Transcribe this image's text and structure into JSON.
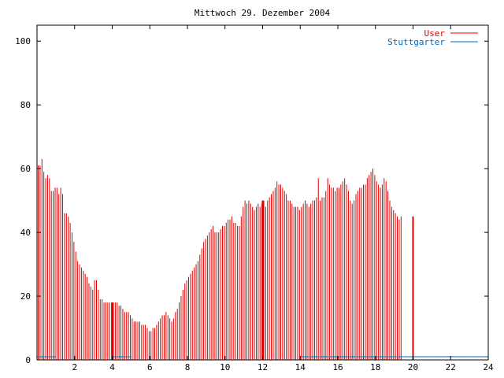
{
  "chart_data": {
    "type": "bar",
    "title": "Mittwoch 29. Dezember 2004",
    "xlabel": "",
    "ylabel": "",
    "xlim": [
      0,
      24
    ],
    "ylim": [
      0,
      105
    ],
    "x_ticks": [
      2,
      4,
      6,
      8,
      10,
      12,
      14,
      16,
      18,
      20,
      22,
      24
    ],
    "y_ticks": [
      0,
      20,
      40,
      60,
      80,
      100
    ],
    "grid": false,
    "legend_position": "top-right",
    "interval_hours": 0.1,
    "series": [
      {
        "name": "User",
        "color": "#e00000",
        "values": [
          61,
          61,
          63,
          59,
          57,
          58,
          57,
          53,
          53,
          54,
          54,
          52,
          54,
          52,
          46,
          46,
          45,
          43,
          40,
          37,
          34,
          31,
          30,
          29,
          28,
          27,
          26,
          24,
          23,
          22,
          25,
          25,
          22,
          19,
          19,
          18,
          18,
          18,
          18,
          18,
          18,
          18,
          18,
          17,
          17,
          16,
          15,
          15,
          15,
          14,
          13,
          12,
          12,
          12,
          12,
          11,
          11,
          11,
          10,
          9,
          9,
          10,
          10,
          11,
          12,
          13,
          14,
          14,
          15,
          14,
          13,
          12,
          13,
          15,
          16,
          18,
          20,
          22,
          24,
          25,
          26,
          27,
          28,
          29,
          30,
          31,
          33,
          35,
          37,
          38,
          39,
          40,
          41,
          42,
          40,
          40,
          40,
          41,
          42,
          42,
          43,
          44,
          44,
          45,
          43,
          43,
          42,
          42,
          45,
          48,
          50,
          49,
          50,
          49,
          48,
          47,
          48,
          49,
          48,
          49,
          50,
          48,
          50,
          51,
          52,
          53,
          54,
          56,
          55,
          55,
          54,
          53,
          52,
          50,
          50,
          49,
          48,
          48,
          48,
          47,
          48,
          49,
          50,
          49,
          48,
          49,
          50,
          50,
          51,
          57,
          50,
          51,
          51,
          53,
          57,
          55,
          54,
          54,
          53,
          54,
          54,
          55,
          56,
          57,
          55,
          53,
          50,
          49,
          50,
          52,
          53,
          54,
          54,
          55,
          55,
          57,
          58,
          59,
          60,
          58,
          56,
          55,
          54,
          55,
          57,
          56,
          53,
          50,
          48,
          47,
          46,
          45,
          44,
          45
        ],
        "highlight_bars": [
          4.0,
          12.0,
          20.0
        ]
      },
      {
        "name": "Stuttgarter",
        "color": "#0066bb",
        "values_by_hour": [
          1,
          0,
          0,
          0,
          1,
          0,
          0,
          0,
          0,
          0,
          0,
          0,
          0,
          0,
          1,
          1,
          1,
          1,
          1,
          1,
          1,
          1,
          1,
          1
        ]
      }
    ]
  }
}
